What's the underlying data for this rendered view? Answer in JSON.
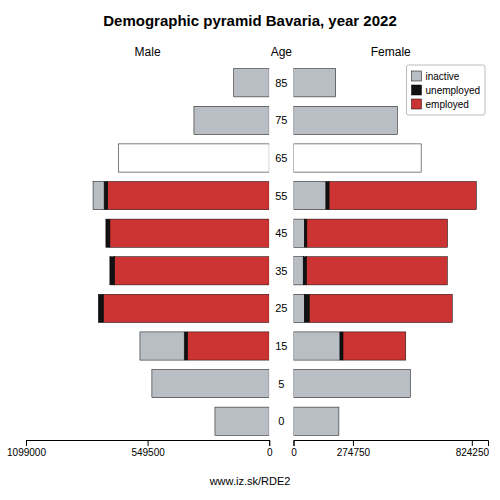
{
  "chart_data": [
    {
      "type": "bar",
      "orientation": "horizontal",
      "stacked": true,
      "title": "Demographic pyramid Bavaria, year 2022",
      "subtitle": "Male",
      "ylabel": "Age",
      "annotations": [
        "www.iz.sk/RDE2"
      ],
      "categories": [
        "0",
        "5",
        "15",
        "25",
        "35",
        "45",
        "55",
        "65",
        "75",
        "85"
      ],
      "series": [
        {
          "name": "employed",
          "color": "#cc3333",
          "values": [
            0,
            0,
            370000,
            750000,
            700000,
            720000,
            730000,
            0,
            0,
            0
          ]
        },
        {
          "name": "unemployed",
          "color": "#111111",
          "values": [
            0,
            0,
            14000,
            22000,
            20000,
            18000,
            16000,
            0,
            0,
            0
          ]
        },
        {
          "name": "inactive",
          "color": "#b8bec4",
          "colors": [
            "#b8bec4",
            "#b8bec4",
            "#b8bec4",
            "#b8bec4",
            "#b8bec4",
            "#b8bec4",
            "#b8bec4",
            "#ffffff",
            "#b8bec4",
            "#b8bec4"
          ],
          "values": [
            245000,
            530000,
            200000,
            0,
            0,
            0,
            50000,
            680000,
            340000,
            160000
          ]
        }
      ],
      "xlim": [
        1099000,
        0
      ],
      "xticks": [
        1099000,
        549500,
        0
      ]
    },
    {
      "type": "bar",
      "orientation": "horizontal",
      "stacked": true,
      "subtitle": "Female",
      "categories": [
        "0",
        "5",
        "15",
        "25",
        "35",
        "45",
        "55",
        "65",
        "75",
        "85"
      ],
      "series": [
        {
          "name": "inactive",
          "color": "#b8bec4",
          "colors": [
            "#b8bec4",
            "#b8bec4",
            "#b8bec4",
            "#b8bec4",
            "#b8bec4",
            "#b8bec4",
            "#b8bec4",
            "#ffffff",
            "#b8bec4",
            "#b8bec4"
          ],
          "values": [
            210000,
            540000,
            215000,
            50000,
            45000,
            50000,
            150000,
            590000,
            480000,
            195000
          ]
        },
        {
          "name": "unemployed",
          "color": "#111111",
          "values": [
            0,
            0,
            14000,
            24000,
            16000,
            12000,
            15000,
            0,
            0,
            0
          ]
        },
        {
          "name": "employed",
          "color": "#cc3333",
          "values": [
            0,
            0,
            290000,
            660000,
            650000,
            650000,
            680000,
            0,
            0,
            0
          ]
        }
      ],
      "xlim": [
        0,
        899000
      ],
      "xticks": [
        0,
        274750,
        824250
      ],
      "legend": "upper right"
    }
  ]
}
